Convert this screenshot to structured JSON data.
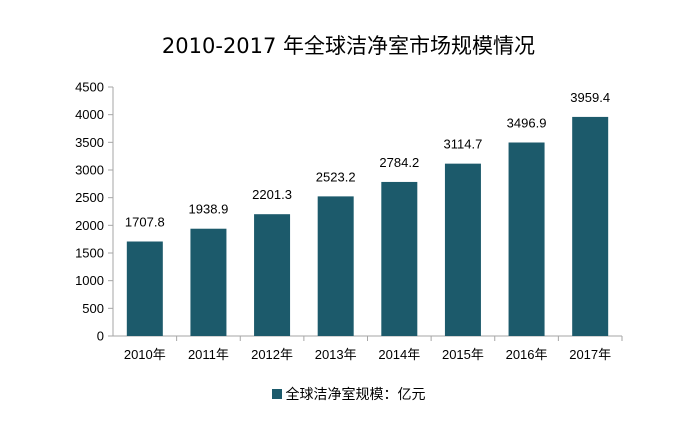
{
  "chart_data": {
    "type": "bar",
    "title": "2010-2017 年全球洁净室市场规模情况",
    "categories": [
      "2010年",
      "2011年",
      "2012年",
      "2013年",
      "2014年",
      "2015年",
      "2016年",
      "2017年"
    ],
    "series": [
      {
        "name": "全球洁净室规模：亿元",
        "values": [
          1707.8,
          1938.9,
          2201.3,
          2523.2,
          2784.2,
          3114.7,
          3496.9,
          3959.4
        ],
        "labels": [
          "1707.8",
          "1938.9",
          "2201.3",
          "2523.2",
          "2784.2",
          "3114.7",
          "3496.9",
          "3959.4"
        ],
        "color": "#1c5a6b"
      }
    ],
    "ylim": [
      0,
      4500
    ],
    "yticks": [
      0,
      500,
      1000,
      1500,
      2000,
      2500,
      3000,
      3500,
      4000,
      4500
    ],
    "grid": false,
    "legend_position": "bottom"
  }
}
